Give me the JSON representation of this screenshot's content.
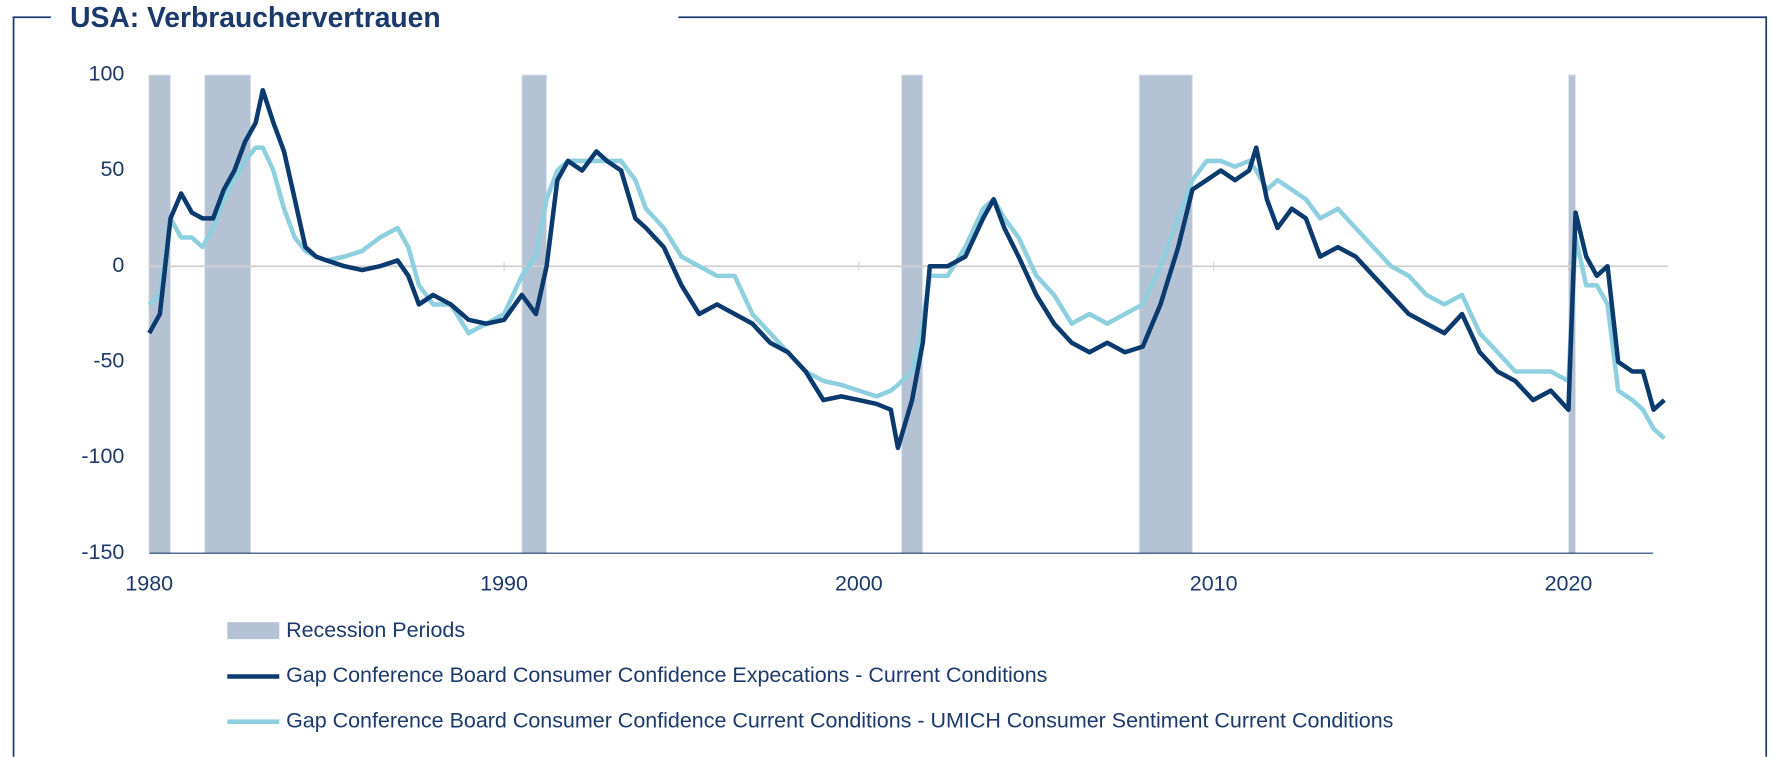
{
  "chart_data": {
    "type": "line",
    "title": "USA: Verbrauchervertrauen",
    "xlim": [
      1980,
      2022.8
    ],
    "xticks": [
      1980,
      1990,
      2000,
      2010,
      2020
    ],
    "ylim": [
      -150,
      100
    ],
    "yticks": [
      100,
      50,
      0,
      -50,
      -100,
      -150
    ],
    "shaded": {
      "name": "Recession Periods",
      "color": "#b4c2d4",
      "ranges": [
        [
          1980.0,
          1980.6
        ],
        [
          1981.56,
          1982.86
        ],
        [
          1990.5,
          1991.2
        ],
        [
          2001.2,
          2001.8
        ],
        [
          2007.9,
          2009.4
        ],
        [
          2020.0,
          2020.2
        ]
      ]
    },
    "x": [
      1980.0,
      1980.3,
      1980.6,
      1980.9,
      1981.2,
      1981.5,
      1981.8,
      1982.1,
      1982.4,
      1982.7,
      1983.0,
      1983.2,
      1983.5,
      1983.8,
      1984.1,
      1984.4,
      1984.7,
      1985.0,
      1985.5,
      1986.0,
      1986.5,
      1987.0,
      1987.3,
      1987.6,
      1988.0,
      1988.5,
      1989.0,
      1989.5,
      1990.0,
      1990.5,
      1990.9,
      1991.2,
      1991.5,
      1991.8,
      1992.2,
      1992.6,
      1992.9,
      1993.3,
      1993.7,
      1994.0,
      1994.5,
      1995.0,
      1995.5,
      1996.0,
      1996.5,
      1997.0,
      1997.5,
      1998.0,
      1998.5,
      1999.0,
      1999.5,
      2000.0,
      2000.5,
      2000.9,
      2001.1,
      2001.5,
      2001.8,
      2002.0,
      2002.5,
      2003.0,
      2003.5,
      2003.8,
      2004.1,
      2004.5,
      2005.0,
      2005.5,
      2006.0,
      2006.5,
      2007.0,
      2007.5,
      2008.0,
      2008.5,
      2009.0,
      2009.4,
      2009.8,
      2010.2,
      2010.6,
      2011.0,
      2011.2,
      2011.5,
      2011.8,
      2012.2,
      2012.6,
      2013.0,
      2013.5,
      2014.0,
      2014.5,
      2015.0,
      2015.5,
      2016.0,
      2016.5,
      2017.0,
      2017.5,
      2018.0,
      2018.5,
      2019.0,
      2019.5,
      2020.0,
      2020.2,
      2020.5,
      2020.8,
      2021.1,
      2021.4,
      2021.8,
      2022.1,
      2022.4,
      2022.7
    ],
    "series": [
      {
        "name": "Gap Conference Board Consumer Confidence Expecations - Current Conditions",
        "color": "#0b3a6e",
        "values": [
          -35,
          -25,
          25,
          38,
          28,
          25,
          25,
          40,
          50,
          65,
          75,
          92,
          75,
          60,
          35,
          10,
          5,
          3,
          0,
          -2,
          0,
          3,
          -5,
          -20,
          -15,
          -20,
          -28,
          -30,
          -28,
          -15,
          -25,
          0,
          45,
          55,
          50,
          60,
          55,
          50,
          25,
          20,
          10,
          -10,
          -25,
          -20,
          -25,
          -30,
          -40,
          -45,
          -55,
          -70,
          -68,
          -70,
          -72,
          -75,
          -95,
          -70,
          -40,
          0,
          0,
          5,
          25,
          35,
          20,
          5,
          -15,
          -30,
          -40,
          -45,
          -40,
          -45,
          -42,
          -20,
          10,
          40,
          45,
          50,
          45,
          50,
          62,
          35,
          20,
          30,
          25,
          5,
          10,
          5,
          -5,
          -15,
          -25,
          -30,
          -35,
          -25,
          -45,
          -55,
          -60,
          -70,
          -65,
          -75,
          28,
          5,
          -5,
          0,
          -50,
          -55,
          -55,
          -75,
          -70
        ]
      },
      {
        "name": "Gap Conference Board Consumer Confidence Current Conditions - UMICH Consumer Sentiment Current Conditions",
        "color": "#8ecfe0",
        "values": [
          -20,
          -15,
          25,
          15,
          15,
          10,
          20,
          35,
          45,
          55,
          62,
          62,
          50,
          30,
          15,
          8,
          5,
          3,
          5,
          8,
          15,
          20,
          10,
          -10,
          -20,
          -20,
          -35,
          -30,
          -25,
          -5,
          5,
          35,
          50,
          55,
          55,
          55,
          55,
          55,
          45,
          30,
          20,
          5,
          0,
          -5,
          -5,
          -25,
          -35,
          -45,
          -55,
          -60,
          -62,
          -65,
          -68,
          -65,
          -62,
          -55,
          -30,
          -5,
          -5,
          10,
          30,
          35,
          25,
          15,
          -5,
          -15,
          -30,
          -25,
          -30,
          -25,
          -20,
          0,
          25,
          45,
          55,
          55,
          52,
          55,
          50,
          40,
          45,
          40,
          35,
          25,
          30,
          20,
          10,
          0,
          -5,
          -15,
          -20,
          -15,
          -35,
          -45,
          -55,
          -55,
          -55,
          -60,
          15,
          -10,
          -10,
          -20,
          -65,
          -70,
          -75,
          -85,
          -90
        ]
      }
    ]
  }
}
